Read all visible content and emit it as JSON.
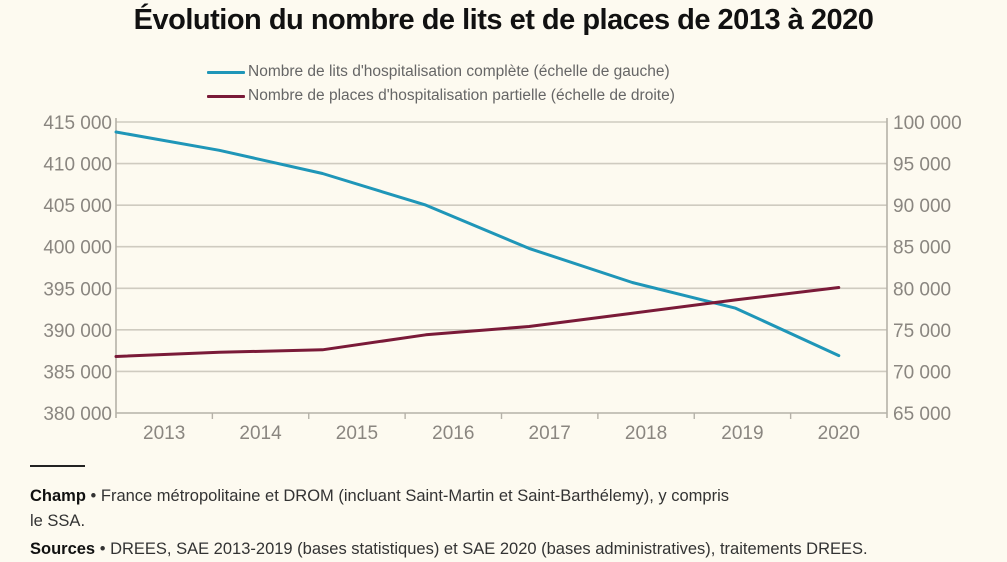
{
  "chart_data": {
    "type": "line",
    "title": "Évolution du nombre de lits et de places de 2013 à 2020",
    "categories": [
      "2013",
      "2014",
      "2015",
      "2016",
      "2017",
      "2018",
      "2019",
      "2020"
    ],
    "series": [
      {
        "name": "Nombre de lits d'hospitalisation complète (échelle de gauche)",
        "axis": "left",
        "color": "#1f96b8",
        "values": [
          413800,
          411600,
          408800,
          405000,
          399800,
          395700,
          392600,
          386900
        ]
      },
      {
        "name": "Nombre de places d'hospitalisation partielle (échelle de droite)",
        "axis": "right",
        "color": "#7a1a38",
        "values": [
          71800,
          72300,
          72600,
          74400,
          75400,
          77000,
          78600,
          80100
        ]
      }
    ],
    "left_axis": {
      "ylim": [
        380000,
        415000
      ],
      "ticks": [
        380000,
        385000,
        390000,
        395000,
        400000,
        405000,
        410000,
        415000
      ],
      "tick_labels": [
        "380 000",
        "385 000",
        "390 000",
        "395 000",
        "400 000",
        "405 000",
        "410 000",
        "415 000"
      ]
    },
    "right_axis": {
      "ylim": [
        65000,
        100000
      ],
      "ticks": [
        65000,
        70000,
        75000,
        80000,
        85000,
        90000,
        95000,
        100000
      ],
      "tick_labels": [
        "65 000",
        "70 000",
        "75 000",
        "80 000",
        "85 000",
        "90 000",
        "95 000",
        "100 000"
      ]
    },
    "xlabel": "",
    "ylabel": "",
    "grid": true,
    "legend_position": "top-center"
  },
  "footer": {
    "champ_label": "Champ",
    "champ_text": " • France métropolitaine et DROM (incluant Saint-Martin et Saint-Barthélemy), y compris",
    "champ_text2": "le SSA.",
    "sources_label": "Sources",
    "sources_text": " • DREES, SAE 2013-2019 (bases statistiques) et SAE 2020 (bases administratives), traitements DREES."
  }
}
